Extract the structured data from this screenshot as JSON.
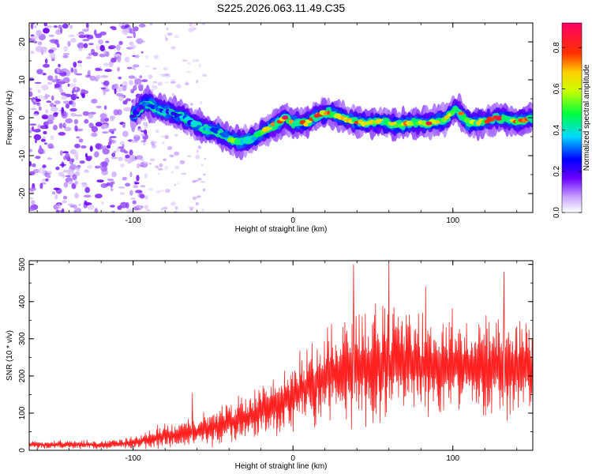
{
  "title": "S225.2026.063.11.49.C35",
  "chart_data": [
    {
      "type": "heatmap",
      "xlabel": "Height of straight line (km)",
      "ylabel": "Frequency (Hz)",
      "xlim": [
        -165,
        150
      ],
      "ylim": [
        -25,
        25
      ],
      "x_ticks": [
        -100,
        0,
        100
      ],
      "y_ticks": [
        -20,
        -10,
        0,
        10,
        20
      ],
      "grid": false,
      "colorbar": {
        "label": "Normalized spectral amplitude",
        "range": [
          0.0,
          0.9
        ],
        "ticks": [
          "0.0",
          "0.2",
          "0.4",
          "0.6",
          "0.8"
        ]
      },
      "noise_region_x": [
        -165,
        -100
      ],
      "noise_density": 0.55,
      "ridge": [
        {
          "x": -100,
          "f": 0.5,
          "amp": 0.25
        },
        {
          "x": -92,
          "f": 4.0,
          "amp": 0.3
        },
        {
          "x": -85,
          "f": 2.5,
          "amp": 0.3
        },
        {
          "x": -78,
          "f": 1.5,
          "amp": 0.35
        },
        {
          "x": -70,
          "f": 0.5,
          "amp": 0.35
        },
        {
          "x": -62,
          "f": -1.5,
          "amp": 0.4
        },
        {
          "x": -55,
          "f": -3.0,
          "amp": 0.4
        },
        {
          "x": -48,
          "f": -3.5,
          "amp": 0.45
        },
        {
          "x": -40,
          "f": -5.5,
          "amp": 0.55
        },
        {
          "x": -33,
          "f": -6.5,
          "amp": 0.6
        },
        {
          "x": -25,
          "f": -5.5,
          "amp": 0.6
        },
        {
          "x": -18,
          "f": -3.5,
          "amp": 0.65
        },
        {
          "x": -10,
          "f": -1.5,
          "amp": 0.7
        },
        {
          "x": -5,
          "f": 0.0,
          "amp": 0.9
        },
        {
          "x": 0,
          "f": -1.5,
          "amp": 0.7
        },
        {
          "x": 8,
          "f": -1.5,
          "amp": 0.75
        },
        {
          "x": 15,
          "f": 0.5,
          "amp": 0.8
        },
        {
          "x": 22,
          "f": 1.5,
          "amp": 0.75
        },
        {
          "x": 30,
          "f": 0.0,
          "amp": 0.7
        },
        {
          "x": 38,
          "f": -1.0,
          "amp": 0.75
        },
        {
          "x": 45,
          "f": -1.5,
          "amp": 0.7
        },
        {
          "x": 55,
          "f": -1.0,
          "amp": 0.7
        },
        {
          "x": 65,
          "f": -2.0,
          "amp": 0.7
        },
        {
          "x": 75,
          "f": -1.5,
          "amp": 0.7
        },
        {
          "x": 85,
          "f": -1.5,
          "amp": 0.85
        },
        {
          "x": 95,
          "f": -0.5,
          "amp": 0.7
        },
        {
          "x": 102,
          "f": 2.5,
          "amp": 0.7
        },
        {
          "x": 110,
          "f": -1.5,
          "amp": 0.7
        },
        {
          "x": 120,
          "f": -1.0,
          "amp": 0.75
        },
        {
          "x": 128,
          "f": 0.0,
          "amp": 0.85
        },
        {
          "x": 135,
          "f": -0.5,
          "amp": 0.7
        },
        {
          "x": 142,
          "f": -1.0,
          "amp": 0.75
        },
        {
          "x": 150,
          "f": 0.0,
          "amp": 0.7
        }
      ]
    },
    {
      "type": "line",
      "xlabel": "Height of straight line (km)",
      "ylabel": "SNR (10 * v/v)",
      "xlim": [
        -165,
        150
      ],
      "ylim": [
        0,
        510
      ],
      "x_ticks": [
        -100,
        0,
        100
      ],
      "y_ticks": [
        0,
        100,
        200,
        300,
        400,
        500
      ],
      "grid": false,
      "color": "#ff2020",
      "envelope": {
        "description": "noisy SNR trace, mean and spread by height",
        "x": [
          -165,
          -120,
          -100,
          -85,
          -70,
          -55,
          -40,
          -25,
          -10,
          5,
          20,
          35,
          50,
          70,
          90,
          110,
          130,
          150
        ],
        "mean": [
          15,
          15,
          20,
          35,
          45,
          55,
          75,
          95,
          120,
          165,
          200,
          220,
          230,
          235,
          230,
          225,
          220,
          220
        ],
        "spread": [
          10,
          12,
          15,
          30,
          35,
          45,
          55,
          65,
          80,
          95,
          115,
          140,
          150,
          140,
          135,
          130,
          135,
          130
        ]
      },
      "peaks": [
        {
          "x": -63,
          "y": 155
        },
        {
          "x": 38,
          "y": 500
        },
        {
          "x": 60,
          "y": 505
        },
        {
          "x": 83,
          "y": 440
        },
        {
          "x": 132,
          "y": 480
        }
      ]
    }
  ]
}
